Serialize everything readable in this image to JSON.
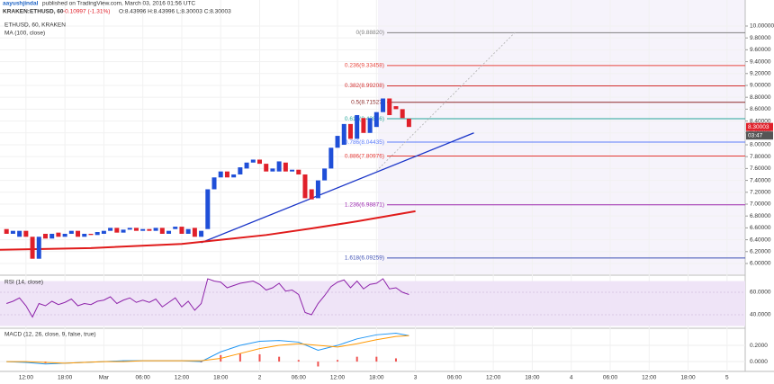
{
  "header": {
    "author": "aayushjindal",
    "published": "published on TradingView.com, March 03, 2016 01:56 UTC",
    "symbol": "KRAKEN:ETHUSD, 60",
    "change": "-0.10997 (-1.31%)",
    "ohlc": "O:8.43996 H:8.43996 L:8.30003 C:8.30003"
  },
  "chart_data": [
    {
      "type": "candlestick",
      "title": "ETHUSD, 60, KRAKEN",
      "up_color": "#1f4fd8",
      "down_color": "#e0202a",
      "grid": true,
      "x": [
        -15,
        -14,
        -13,
        -12,
        -11,
        -10,
        -9,
        -8,
        -7,
        -6,
        -5,
        -4,
        -3,
        -2,
        -1,
        0,
        1,
        2,
        3,
        4,
        5,
        6,
        7,
        8,
        9,
        10,
        11,
        12,
        13,
        14,
        15,
        16,
        17,
        18,
        19,
        20,
        21,
        22,
        23,
        24,
        25,
        26,
        27,
        28,
        29,
        30,
        31,
        32,
        33,
        34,
        35,
        36,
        37,
        38,
        39,
        40,
        41,
        42,
        43,
        44,
        45,
        46,
        47
      ],
      "open": [
        6.58,
        6.5,
        6.45,
        6.55,
        6.45,
        6.08,
        6.5,
        6.42,
        6.52,
        6.45,
        6.5,
        6.55,
        6.45,
        6.5,
        6.48,
        6.5,
        6.55,
        6.6,
        6.52,
        6.57,
        6.6,
        6.55,
        6.58,
        6.55,
        6.6,
        6.5,
        6.58,
        6.62,
        6.5,
        6.6,
        6.45,
        6.58,
        7.25,
        7.45,
        7.55,
        7.45,
        7.5,
        7.6,
        7.7,
        7.75,
        7.68,
        7.55,
        7.55,
        7.7,
        7.55,
        7.58,
        7.5,
        7.25,
        7.1,
        7.4,
        7.6,
        7.95,
        8.0,
        8.35,
        8.1,
        8.45,
        8.2,
        8.3,
        8.55,
        8.78,
        8.65,
        8.6,
        8.43996
      ],
      "close": [
        6.5,
        6.55,
        6.55,
        6.45,
        6.08,
        6.45,
        6.42,
        6.5,
        6.45,
        6.5,
        6.55,
        6.45,
        6.5,
        6.48,
        6.53,
        6.55,
        6.6,
        6.52,
        6.57,
        6.6,
        6.55,
        6.58,
        6.55,
        6.6,
        6.5,
        6.55,
        6.62,
        6.5,
        6.58,
        6.45,
        6.55,
        7.25,
        7.45,
        7.55,
        7.45,
        7.5,
        7.62,
        7.7,
        7.75,
        7.68,
        7.55,
        7.6,
        7.72,
        7.55,
        7.58,
        7.5,
        7.1,
        7.08,
        7.4,
        7.6,
        7.95,
        8.15,
        8.35,
        8.1,
        8.5,
        8.2,
        8.45,
        8.55,
        8.78,
        8.5,
        8.6,
        8.45,
        8.30003
      ],
      "xlim": [
        -16,
        98.8
      ],
      "ylim": [
        5.818,
        10.439
      ],
      "xticks": [
        {
          "value": -12,
          "label": "12:00"
        },
        {
          "value": -6,
          "label": "18:00"
        },
        {
          "value": 0,
          "label": "Mar"
        },
        {
          "value": 6,
          "label": "06:00"
        },
        {
          "value": 12,
          "label": "12:00"
        },
        {
          "value": 18,
          "label": "18:00"
        },
        {
          "value": 24,
          "label": "2"
        },
        {
          "value": 30,
          "label": "06:00"
        },
        {
          "value": 36,
          "label": "12:00"
        },
        {
          "value": 42,
          "label": "18:00"
        },
        {
          "value": 48,
          "label": "3"
        },
        {
          "value": 54,
          "label": "06:00"
        },
        {
          "value": 60,
          "label": "12:00"
        },
        {
          "value": 66,
          "label": "18:00"
        },
        {
          "value": 72,
          "label": "4"
        },
        {
          "value": 78,
          "label": "06:00"
        },
        {
          "value": 84,
          "label": "12:00"
        },
        {
          "value": 90,
          "label": "18:00"
        },
        {
          "value": 96,
          "label": "5"
        }
      ],
      "yticks": [
        {
          "value": 10,
          "label": "10.00000"
        },
        {
          "value": 9.8,
          "label": "9.80000"
        },
        {
          "value": 9.6,
          "label": "9.60000"
        },
        {
          "value": 9.4,
          "label": "9.40000"
        },
        {
          "value": 9.2,
          "label": "9.20000"
        },
        {
          "value": 9,
          "label": "9.00000"
        },
        {
          "value": 8.8,
          "label": "8.80000"
        },
        {
          "value": 8.6,
          "label": "8.60000"
        },
        {
          "value": 8.4,
          "label": "8.40000"
        },
        {
          "value": 8.2,
          "label": "8.20000"
        },
        {
          "value": 8,
          "label": "8.00000"
        },
        {
          "value": 7.8,
          "label": "7.80000"
        },
        {
          "value": 7.6,
          "label": "7.60000"
        },
        {
          "value": 7.4,
          "label": "7.40000"
        },
        {
          "value": 7.2,
          "label": "7.20000"
        },
        {
          "value": 7,
          "label": "7.00000"
        },
        {
          "value": 6.8,
          "label": "6.80000"
        },
        {
          "value": 6.6,
          "label": "6.60000"
        },
        {
          "value": 6.4,
          "label": "6.40000"
        },
        {
          "value": 6.2,
          "label": "6.20000"
        },
        {
          "value": 6,
          "label": "6.00000"
        }
      ],
      "ma": {
        "name": "MA (100, close)",
        "color": "#e01b1b",
        "x": [
          -16,
          -2,
          12,
          25,
          32,
          39,
          48
        ],
        "values": [
          6.23,
          6.26,
          6.33,
          6.48,
          6.59,
          6.71,
          6.88
        ]
      },
      "trendlines": [
        {
          "color": "#1a35c8",
          "dash": false,
          "x": [
            15,
            57
          ],
          "values": [
            6.35,
            8.2
          ]
        },
        {
          "color": "#b0b0b0",
          "dash": true,
          "x": [
            42,
            63.5
          ],
          "values": [
            7.56,
            9.91
          ]
        }
      ],
      "fib": [
        {
          "value": 9.8882,
          "label": "0(9.88820)",
          "color": "#808080"
        },
        {
          "value": 9.33458,
          "label": "0.236(9.33458)",
          "color": "#e8453c"
        },
        {
          "value": 8.99208,
          "label": "0.382(8.99208)",
          "color": "#d32f2f"
        },
        {
          "value": 8.71527,
          "label": "0.5(8.71527)",
          "color": "#8d2b2b"
        },
        {
          "value": 8.43846,
          "label": "0.618(8.43846)",
          "color": "#26a69a"
        },
        {
          "value": 8.04435,
          "label": "0.786(8.04435)",
          "color": "#5c7cfa"
        },
        {
          "value": 7.80976,
          "label": "0.886(7.80976)",
          "color": "#e53935"
        },
        {
          "value": 6.98871,
          "label": "1.236(6.98871)",
          "color": "#9c27b0"
        },
        {
          "value": 6.09259,
          "label": "1.618(6.09259)",
          "color": "#3f51b5"
        }
      ],
      "last_price": {
        "value": 8.30003,
        "label": "8.30003",
        "color": "#e0202a"
      },
      "countdown": "03:47"
    },
    {
      "type": "line",
      "title": "RSI (14, close)",
      "color": "#8e24aa",
      "band": [
        30,
        70
      ],
      "values": [
        50,
        52,
        55,
        48,
        38,
        50,
        48,
        52,
        49,
        51,
        54,
        48,
        50,
        49,
        52,
        53,
        56,
        50,
        53,
        55,
        51,
        53,
        51,
        54,
        47,
        51,
        55,
        47,
        52,
        44,
        50,
        72,
        70,
        69,
        64,
        66,
        68,
        69,
        70,
        67,
        62,
        64,
        68,
        61,
        62,
        58,
        42,
        40,
        50,
        57,
        65,
        69,
        71,
        64,
        70,
        63,
        67,
        68,
        72,
        63,
        64,
        60,
        58
      ],
      "ylim": [
        28.8,
        73.6
      ],
      "yticks": [
        {
          "value": 60,
          "label": "60.0000"
        },
        {
          "value": 40,
          "label": "40.0000"
        }
      ]
    },
    {
      "type": "macd",
      "title": "MACD (12, 26, close, 9, false, true)",
      "x": [
        -15,
        -12,
        -9,
        -6,
        -3,
        0,
        3,
        6,
        9,
        12,
        15,
        18,
        21,
        24,
        27,
        30,
        33,
        36,
        39,
        42,
        45,
        47
      ],
      "series": [
        {
          "name": "MACD",
          "color": "#2196f3",
          "values": [
            0,
            -0.01,
            -0.03,
            -0.02,
            -0.01,
            0,
            0.01,
            0.01,
            0.01,
            0.01,
            0,
            0.12,
            0.2,
            0.25,
            0.26,
            0.24,
            0.14,
            0.2,
            0.28,
            0.33,
            0.35,
            0.32
          ]
        },
        {
          "name": "Signal",
          "color": "#ff9800",
          "values": [
            0,
            0,
            -0.01,
            -0.02,
            -0.01,
            0,
            0,
            0.01,
            0.01,
            0.01,
            0.01,
            0.04,
            0.1,
            0.16,
            0.2,
            0.22,
            0.2,
            0.18,
            0.22,
            0.27,
            0.31,
            0.32
          ]
        }
      ],
      "histogram": {
        "color": "#ef5350",
        "values": [
          0,
          -0.01,
          -0.02,
          0,
          0,
          0,
          0.01,
          0,
          0,
          0,
          -0.01,
          0.08,
          0.1,
          0.09,
          0.06,
          0.02,
          -0.06,
          0.02,
          0.06,
          0.06,
          0.04,
          0
        ]
      },
      "ylim": [
        -0.11,
        0.4
      ],
      "yticks": [
        {
          "value": 0.2,
          "label": "0.2000"
        },
        {
          "value": 0,
          "label": "0.0000"
        }
      ]
    }
  ]
}
